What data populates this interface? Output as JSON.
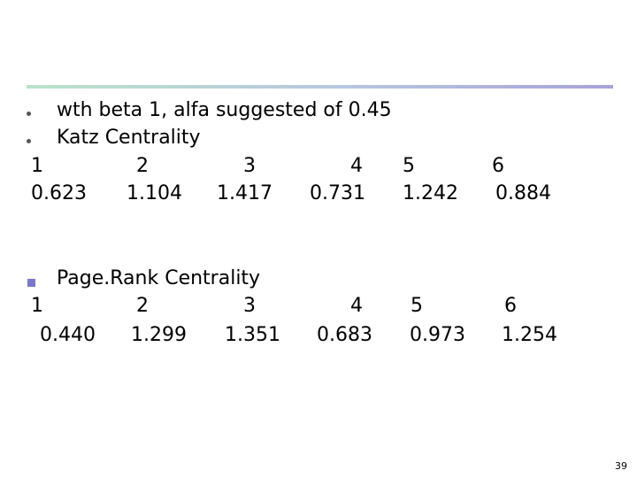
{
  "slide": {
    "bullet1": "wth beta 1, alfa suggested of 0.45",
    "bullet2": "Katz Centrality",
    "katz": {
      "nodes": [
        "1",
        "2",
        "3",
        "4",
        "5",
        "6"
      ],
      "values": [
        "0.623",
        "1.104",
        "1.417",
        "0.731",
        "1.242",
        "0.884"
      ]
    },
    "bullet3": "Page.Rank Centrality",
    "pagerank": {
      "nodes": [
        "1",
        "2",
        "3",
        "4",
        "5",
        "6"
      ],
      "values": [
        "0.440",
        "1.299",
        "1.351",
        "0.683",
        "0.973",
        "1.254"
      ]
    },
    "page_number": "39"
  }
}
